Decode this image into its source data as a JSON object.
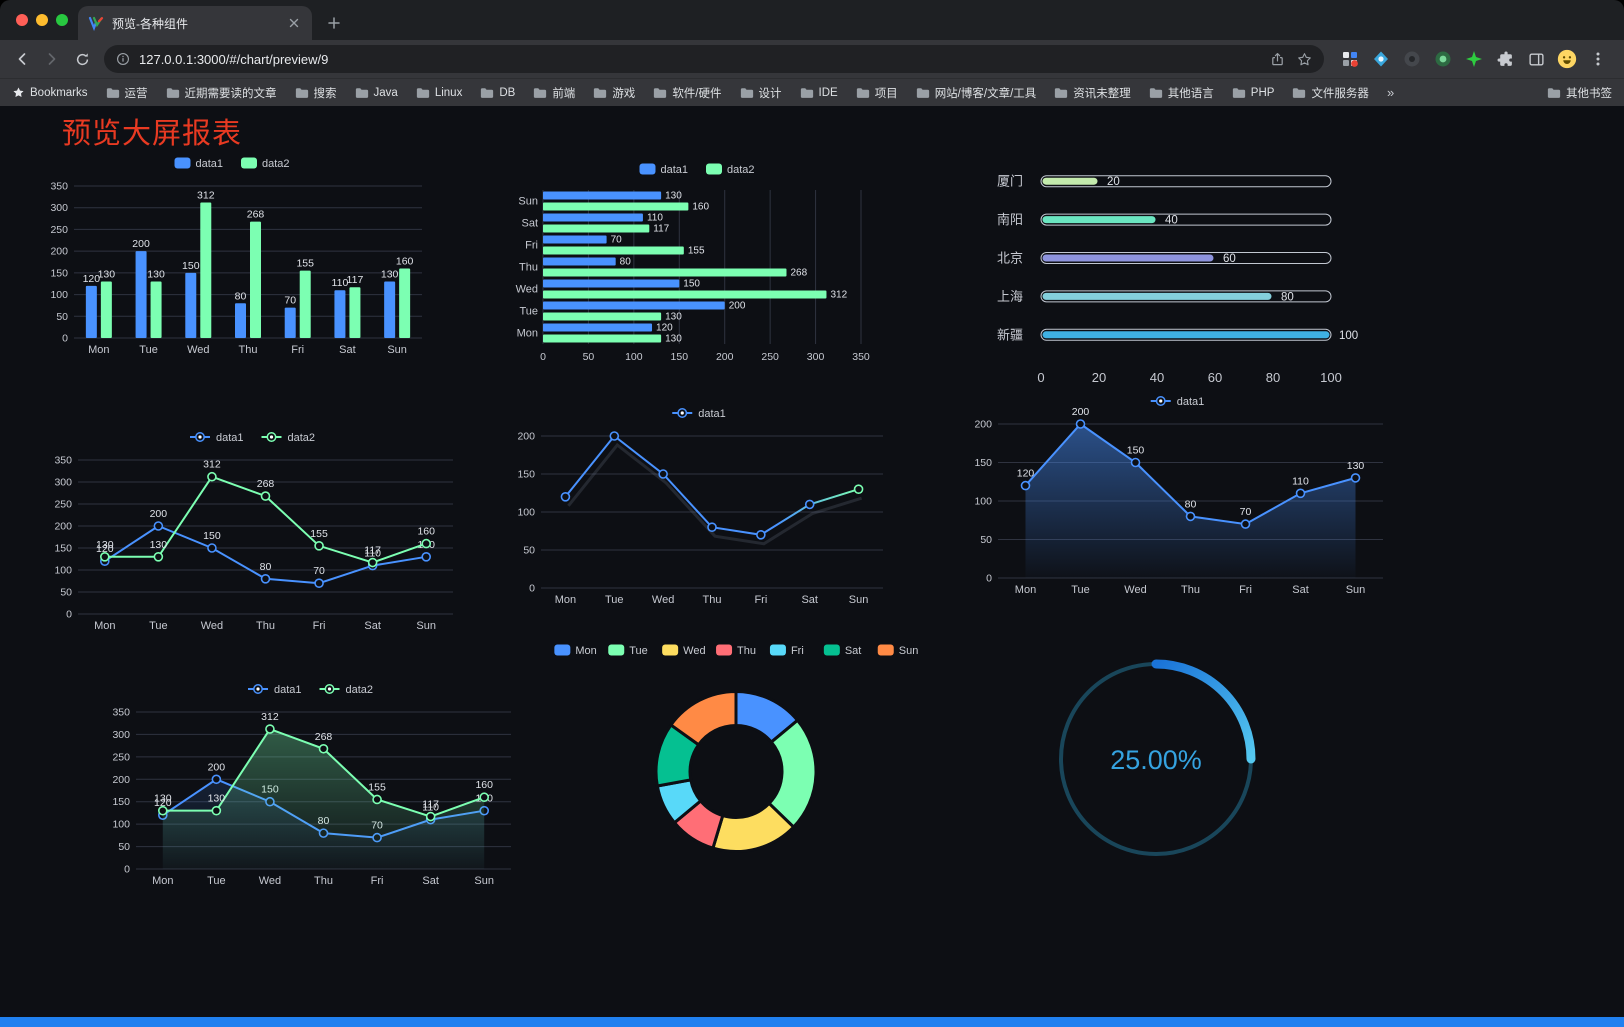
{
  "browser": {
    "tab_title": "预览-各种组件",
    "url": "127.0.0.1:3000/#/chart/preview/9",
    "bookmarks_label": "Bookmarks",
    "bookmarks": [
      "运营",
      "近期需要读的文章",
      "搜索",
      "Java",
      "Linux",
      "DB",
      "前端",
      "游戏",
      "软件/硬件",
      "设计",
      "IDE",
      "项目",
      "网站/博客/文章/工具",
      "资讯未整理",
      "其他语言",
      "PHP",
      "文件服务器"
    ],
    "bookmarks_overflow": "»",
    "other_bookmarks": "其他书签"
  },
  "page": {
    "title": "预览大屏报表"
  },
  "palette": {
    "bg": "#0d0f14",
    "grid": "#2f3340",
    "axis_text": "#c6c9d1",
    "label_text": "#dfe2e8",
    "legend_text": "#c8cbd2",
    "blue": "#4992ff",
    "green": "#7cffb2"
  },
  "chart_data": [
    {
      "id": "grouped-bar",
      "type": "bar",
      "categories": [
        "Mon",
        "Tue",
        "Wed",
        "Thu",
        "Fri",
        "Sat",
        "Sun"
      ],
      "series": [
        {
          "name": "data1",
          "color": "#4992ff",
          "values": [
            120,
            200,
            150,
            80,
            70,
            110,
            130
          ]
        },
        {
          "name": "data2",
          "color": "#7cffb2",
          "values": [
            130,
            130,
            312,
            268,
            155,
            117,
            160
          ]
        }
      ],
      "ylim": [
        0,
        350
      ],
      "ystep": 50
    },
    {
      "id": "horizontal-bar",
      "type": "hbar",
      "categories": [
        "Mon",
        "Tue",
        "Wed",
        "Thu",
        "Fri",
        "Sat",
        "Sun"
      ],
      "series": [
        {
          "name": "data1",
          "color": "#4992ff",
          "values": [
            120,
            200,
            150,
            80,
            70,
            110,
            130
          ]
        },
        {
          "name": "data2",
          "color": "#7cffb2",
          "values": [
            130,
            130,
            312,
            268,
            155,
            117,
            160
          ]
        }
      ],
      "xlim": [
        0,
        350
      ],
      "xstep": 50
    },
    {
      "id": "capsule-bar",
      "type": "capsule",
      "categories": [
        "厦门",
        "南阳",
        "北京",
        "上海",
        "新疆"
      ],
      "values": [
        20,
        40,
        60,
        80,
        100
      ],
      "colors": [
        "#c4ebad",
        "#6be6c1",
        "#8d93dd",
        "#84cfdc",
        "#3fb1e3"
      ],
      "xlim": [
        0,
        100
      ],
      "xticks": [
        0,
        20,
        40,
        60,
        80,
        100
      ]
    },
    {
      "id": "double-line",
      "type": "line",
      "categories": [
        "Mon",
        "Tue",
        "Wed",
        "Thu",
        "Fri",
        "Sat",
        "Sun"
      ],
      "series": [
        {
          "name": "data1",
          "color": "#4992ff",
          "values": [
            120,
            200,
            150,
            80,
            70,
            110,
            130
          ]
        },
        {
          "name": "data2",
          "color": "#7cffb2",
          "values": [
            130,
            130,
            312,
            268,
            155,
            117,
            160
          ]
        }
      ],
      "ylim": [
        0,
        350
      ],
      "ystep": 50,
      "labels": true
    },
    {
      "id": "single-line",
      "type": "line",
      "categories": [
        "Mon",
        "Tue",
        "Wed",
        "Thu",
        "Fri",
        "Sat",
        "Sun"
      ],
      "series": [
        {
          "name": "data1",
          "color": "#4992ff",
          "end_color": "#7cffb2",
          "values": [
            120,
            200,
            150,
            80,
            70,
            110,
            130
          ]
        }
      ],
      "ylim": [
        0,
        200
      ],
      "ystep": 50,
      "labels": false,
      "shadow": true
    },
    {
      "id": "area-line",
      "type": "line",
      "categories": [
        "Mon",
        "Tue",
        "Wed",
        "Thu",
        "Fri",
        "Sat",
        "Sun"
      ],
      "series": [
        {
          "name": "data1",
          "color": "#4992ff",
          "fill": 0.5,
          "values": [
            120,
            200,
            150,
            80,
            70,
            110,
            130
          ]
        }
      ],
      "ylim": [
        0,
        200
      ],
      "ystep": 50,
      "labels": true
    },
    {
      "id": "double-area",
      "type": "line",
      "categories": [
        "Mon",
        "Tue",
        "Wed",
        "Thu",
        "Fri",
        "Sat",
        "Sun"
      ],
      "series": [
        {
          "name": "data1",
          "color": "#4992ff",
          "fill": 0.14,
          "values": [
            120,
            200,
            150,
            80,
            70,
            110,
            130
          ]
        },
        {
          "name": "data2",
          "color": "#7cffb2",
          "fill": 0.32,
          "values": [
            130,
            130,
            312,
            268,
            155,
            117,
            160
          ]
        }
      ],
      "ylim": [
        0,
        350
      ],
      "ystep": 50,
      "labels": true
    },
    {
      "id": "donut-pie",
      "type": "pie",
      "categories": [
        "Mon",
        "Tue",
        "Wed",
        "Thu",
        "Fri",
        "Sat",
        "Sun"
      ],
      "values": [
        120,
        200,
        150,
        80,
        70,
        110,
        130
      ],
      "colors": [
        "#4992ff",
        "#7cffb2",
        "#fddd60",
        "#ff6e76",
        "#58d9f9",
        "#05c091",
        "#ff8a45"
      ]
    },
    {
      "id": "gauge-ring",
      "type": "gauge",
      "value": 25,
      "max": 100,
      "label": "25.00%",
      "track": "#19465a",
      "text_color": "#35a3e0"
    }
  ]
}
